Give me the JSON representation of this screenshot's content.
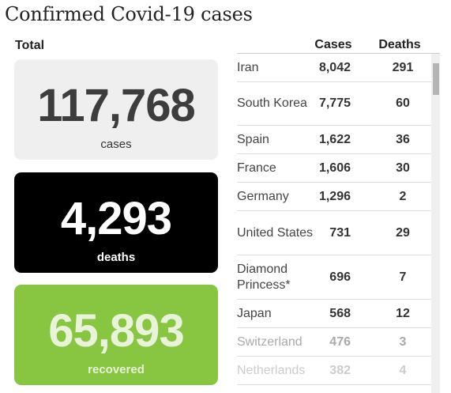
{
  "title": "Confirmed Covid-19 cases",
  "total_label": "Total",
  "cards": {
    "cases": {
      "value": "117,768",
      "label": "cases",
      "color": "#efefef"
    },
    "deaths": {
      "value": "4,293",
      "label": "deaths",
      "color": "#000000"
    },
    "recovered": {
      "value": "65,893",
      "label": "recovered",
      "color": "#88c540"
    }
  },
  "table": {
    "headers": {
      "cases": "Cases",
      "deaths": "Deaths"
    },
    "rows": [
      {
        "country": "Iran",
        "cases": "8,042",
        "deaths": "291"
      },
      {
        "country": "South Korea",
        "cases": "7,775",
        "deaths": "60"
      },
      {
        "country": "Spain",
        "cases": "1,622",
        "deaths": "36"
      },
      {
        "country": "France",
        "cases": "1,606",
        "deaths": "30"
      },
      {
        "country": "Germany",
        "cases": "1,296",
        "deaths": "2"
      },
      {
        "country": "United States",
        "cases": "731",
        "deaths": "29"
      },
      {
        "country": "Diamond Princess*",
        "cases": "696",
        "deaths": "7"
      },
      {
        "country": "Japan",
        "cases": "568",
        "deaths": "12"
      },
      {
        "country": "Switzerland",
        "cases": "476",
        "deaths": "3"
      },
      {
        "country": "Netherlands",
        "cases": "382",
        "deaths": "4"
      }
    ]
  }
}
